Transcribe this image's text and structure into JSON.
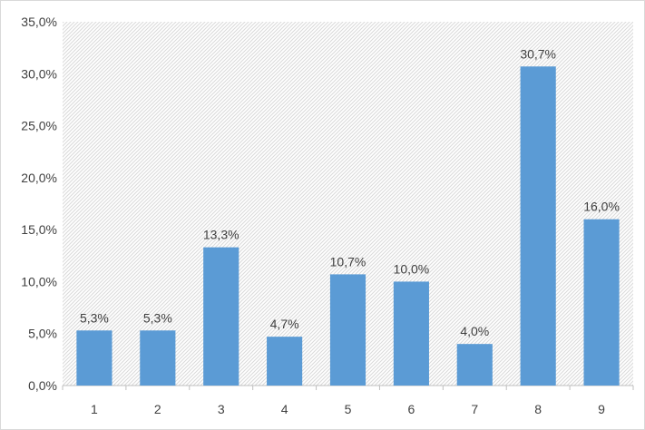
{
  "chart_data": {
    "type": "bar",
    "categories": [
      "1",
      "2",
      "3",
      "4",
      "5",
      "6",
      "7",
      "8",
      "9"
    ],
    "values": [
      5.3,
      5.3,
      13.3,
      4.7,
      10.7,
      10.0,
      4.0,
      30.7,
      16.0
    ],
    "data_labels": [
      "5,3%",
      "5,3%",
      "13,3%",
      "4,7%",
      "10,7%",
      "10,0%",
      "4,0%",
      "30,7%",
      "16,0%"
    ],
    "y_ticks": [
      0,
      5,
      10,
      15,
      20,
      25,
      30,
      35
    ],
    "y_tick_labels": [
      "0,0%",
      "5,0%",
      "10,0%",
      "15,0%",
      "20,0%",
      "25,0%",
      "30,0%",
      "35,0%"
    ],
    "ylim": [
      0,
      35
    ],
    "title": "",
    "xlabel": "",
    "ylabel": "",
    "grid": false,
    "legend": "none",
    "colors": {
      "bar": "#5b9bd5",
      "plot_background_pattern": "#d9d9d9",
      "axis": "#bfbfbf",
      "text": "#404040"
    }
  }
}
